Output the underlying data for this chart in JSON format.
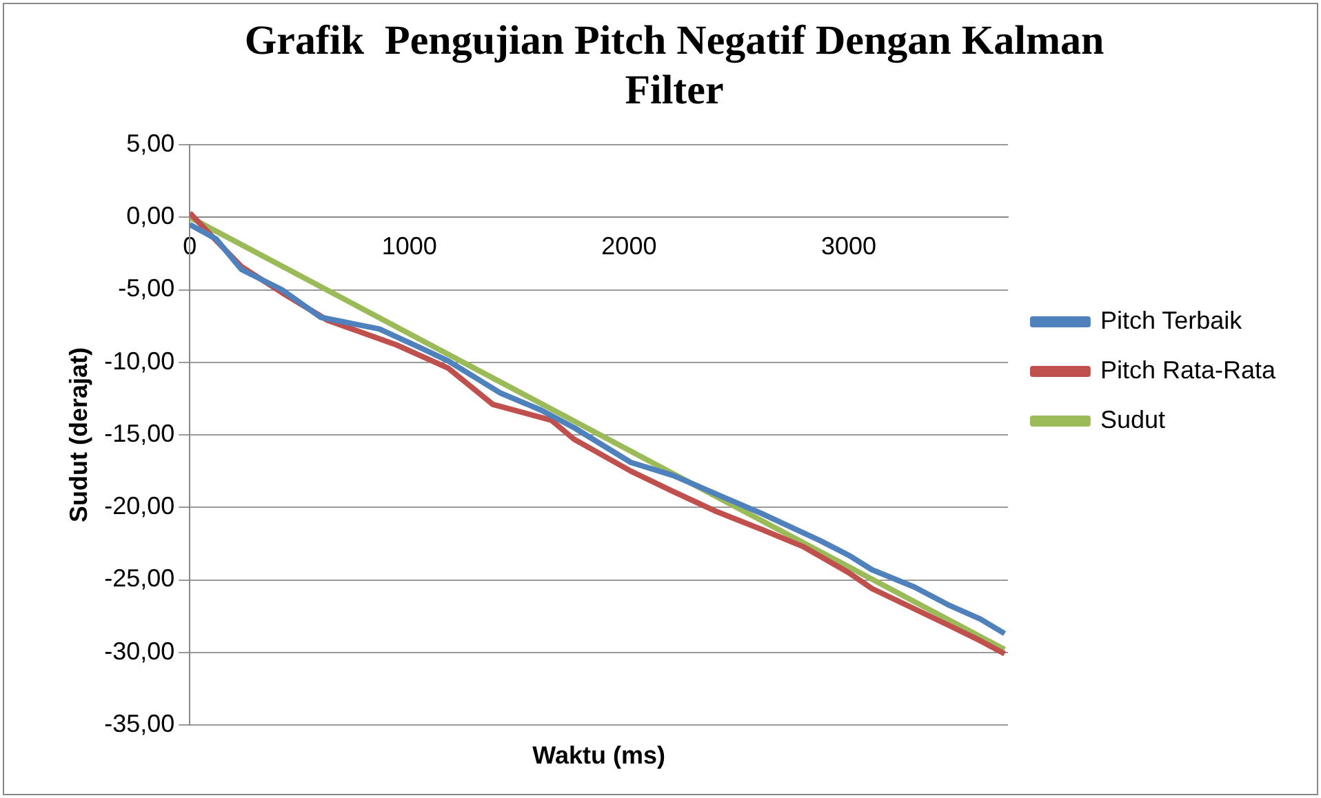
{
  "chart_data": {
    "type": "line",
    "title": "Grafik  Pengujian Pitch Negatif Dengan Kalman Filter",
    "xlabel": "Waktu (ms)",
    "ylabel": "Sudut (derajat)",
    "xlim": [
      0,
      3725
    ],
    "xticks": [
      0,
      1000,
      2000,
      3000
    ],
    "ylim": [
      -35,
      5
    ],
    "yticks": [
      {
        "value": -35,
        "label": "-35,00"
      },
      {
        "value": -30,
        "label": "-30,00"
      },
      {
        "value": -25,
        "label": "-25,00"
      },
      {
        "value": -20,
        "label": "-20,00"
      },
      {
        "value": -15,
        "label": "-15,00"
      },
      {
        "value": -10,
        "label": "-10,00"
      },
      {
        "value": -5,
        "label": "-5,00"
      },
      {
        "value": 0,
        "label": "0,00"
      },
      {
        "value": 5,
        "label": "5,00"
      }
    ],
    "grid": "y",
    "legend": "right",
    "marker": "none",
    "line_style": "solid",
    "series": [
      {
        "name": "Pitch Terbaik",
        "color": "#4f81bd",
        "x": [
          0,
          120,
          235,
          420,
          596,
          863,
          1050,
          1176,
          1412,
          1600,
          1749,
          2008,
          2200,
          2400,
          2600,
          2871,
          3000,
          3106,
          3300,
          3451,
          3600,
          3710
        ],
        "values": [
          -0.5,
          -1.5,
          -3.6,
          -5,
          -6.9,
          -7.7,
          -9,
          -9.9,
          -12.1,
          -13.3,
          -14.5,
          -16.9,
          -17.8,
          -19.1,
          -20.4,
          -22.3,
          -23.3,
          -24.3,
          -25.5,
          -26.7,
          -27.7,
          -28.7
        ]
      },
      {
        "name": "Pitch Rata-Rata",
        "color": "#c0504d",
        "x": [
          0,
          120,
          235,
          420,
          627,
          941,
          1176,
          1380,
          1647,
          1749,
          2008,
          2200,
          2400,
          2600,
          2792,
          3000,
          3106,
          3300,
          3451,
          3600,
          3710
        ],
        "values": [
          0.3,
          -1.6,
          -3.4,
          -5.2,
          -7.1,
          -8.8,
          -10.4,
          -12.9,
          -14,
          -15.3,
          -17.5,
          -18.9,
          -20.3,
          -21.5,
          -22.7,
          -24.5,
          -25.6,
          -27,
          -28.1,
          -29.2,
          -30.1
        ]
      },
      {
        "name": "Sudut",
        "color": "#9bbb59",
        "x": [
          0,
          3710
        ],
        "values": [
          0,
          -29.8
        ]
      }
    ]
  }
}
